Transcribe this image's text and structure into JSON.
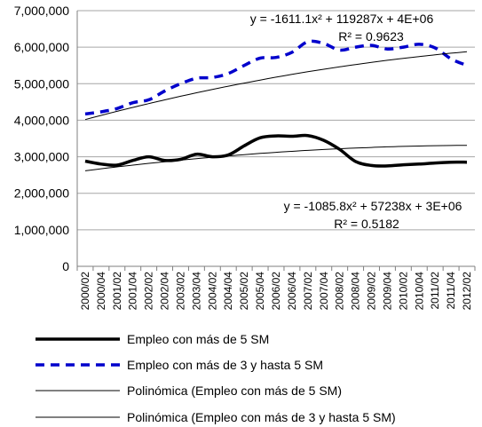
{
  "chart_data": {
    "type": "line",
    "title": "",
    "xlabel": "",
    "ylabel": "",
    "ylim": [
      0,
      7000000
    ],
    "yticks": [
      "0",
      "1,000,000",
      "2,000,000",
      "3,000,000",
      "4,000,000",
      "5,000,000",
      "6,000,000",
      "7,000,000"
    ],
    "x": [
      "2000/02",
      "2000/04",
      "2001/02",
      "2001/04",
      "2002/02",
      "2002/04",
      "2003/02",
      "2003/04",
      "2004/02",
      "2004/04",
      "2005/02",
      "2005/04",
      "2006/02",
      "2006/04",
      "2007/02",
      "2007/04",
      "2008/02",
      "2008/04",
      "2009/02",
      "2009/04",
      "2010/02",
      "2010/04",
      "2011/02",
      "2011/04",
      "2012/02"
    ],
    "grid": "horizontal",
    "legend_position": "bottom",
    "series": [
      {
        "name": "Empleo con más de 5 SM",
        "style": "solid-thick",
        "color": "#000000",
        "values": [
          2880000,
          2800000,
          2770000,
          2900000,
          3000000,
          2900000,
          2930000,
          3070000,
          3000000,
          3050000,
          3300000,
          3520000,
          3570000,
          3560000,
          3580000,
          3450000,
          3200000,
          2870000,
          2760000,
          2750000,
          2780000,
          2800000,
          2830000,
          2850000,
          2850000
        ]
      },
      {
        "name": "Empleo con más de 3 y hasta 5 SM",
        "style": "dashed-thick",
        "color": "#0000cc",
        "values": [
          4170000,
          4230000,
          4320000,
          4480000,
          4560000,
          4800000,
          5000000,
          5150000,
          5170000,
          5280000,
          5500000,
          5700000,
          5720000,
          5860000,
          6150000,
          6100000,
          5920000,
          6000000,
          6050000,
          5950000,
          6000000,
          6080000,
          5980000,
          5680000,
          5500000
        ]
      },
      {
        "name": "Polinómica (Empleo con más de 5 SM)",
        "style": "thin",
        "color": "#000000",
        "poly": [
          -1085.8,
          57238,
          2560000
        ],
        "equation": "y = -1085.8x² + 57238x + 3E+06",
        "r2": "R² = 0.5182"
      },
      {
        "name": "Polinómica (Empleo con más de 3 y hasta 5 SM)",
        "style": "thin",
        "color": "#000000",
        "poly": [
          -1611.1,
          119287,
          3900000
        ],
        "equation": "y = -1611.1x² + 119287x + 4E+06",
        "r2": "R² = 0.9623"
      }
    ]
  }
}
